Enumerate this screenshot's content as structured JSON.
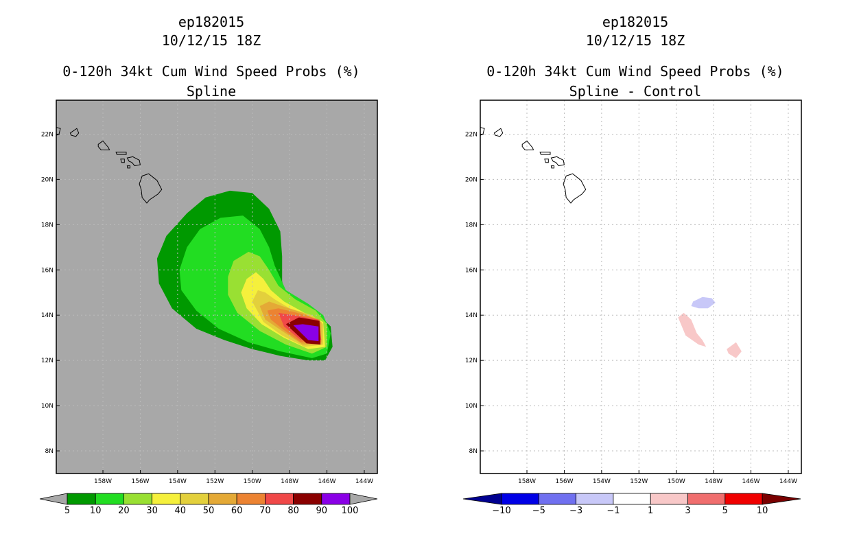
{
  "chart_data": [
    {
      "type": "contour-map",
      "title_lines": [
        "ep182015",
        "10/12/15 18Z",
        "0-120h 34kt Cum Wind Speed Probs (%)",
        "Spline"
      ],
      "xlabel": "",
      "ylabel": "",
      "lon_range": [
        -160.5,
        -143.3
      ],
      "lat_range": [
        7.0,
        23.5
      ],
      "x_ticks": [
        "158W",
        "156W",
        "154W",
        "152W",
        "150W",
        "148W",
        "146W",
        "144W"
      ],
      "x_tick_values": [
        -158,
        -156,
        -154,
        -152,
        -150,
        -148,
        -146,
        -144
      ],
      "y_ticks": [
        "8N",
        "10N",
        "12N",
        "14N",
        "16N",
        "18N",
        "20N",
        "22N"
      ],
      "y_tick_values": [
        8,
        10,
        12,
        14,
        16,
        18,
        20,
        22
      ],
      "background": "#a8a8a8",
      "colorbar": {
        "labels": [
          "5",
          "10",
          "20",
          "30",
          "40",
          "50",
          "60",
          "70",
          "80",
          "90",
          "100"
        ],
        "colors": [
          "#009900",
          "#22dd22",
          "#99e033",
          "#f5f03c",
          "#e3d03c",
          "#e4a936",
          "#ec8332",
          "#f04848",
          "#8a0000",
          "#8a00e6"
        ],
        "end_color": "#a8a8a8"
      },
      "contours": [
        {
          "level": 5,
          "color": "#009900",
          "points": [
            [
              -155.1,
              16.5
            ],
            [
              -154.6,
              17.5
            ],
            [
              -153.5,
              18.5
            ],
            [
              -152.5,
              19.2
            ],
            [
              -151.2,
              19.5
            ],
            [
              -150.0,
              19.4
            ],
            [
              -149.1,
              18.7
            ],
            [
              -148.5,
              17.7
            ],
            [
              -148.4,
              16.6
            ],
            [
              -148.4,
              15.5
            ],
            [
              -148.1,
              14.6
            ],
            [
              -147.3,
              14.1
            ],
            [
              -146.4,
              14.0
            ],
            [
              -145.8,
              13.5
            ],
            [
              -145.7,
              12.6
            ],
            [
              -146.1,
              12.0
            ],
            [
              -147.0,
              12.0
            ],
            [
              -148.5,
              12.2
            ],
            [
              -150.0,
              12.5
            ],
            [
              -151.5,
              12.9
            ],
            [
              -153.0,
              13.4
            ],
            [
              -154.3,
              14.3
            ],
            [
              -155.0,
              15.4
            ]
          ]
        },
        {
          "level": 10,
          "color": "#22dd22",
          "points": [
            [
              -153.9,
              16.0
            ],
            [
              -153.5,
              17.0
            ],
            [
              -152.8,
              17.8
            ],
            [
              -151.7,
              18.3
            ],
            [
              -150.5,
              18.4
            ],
            [
              -149.6,
              17.8
            ],
            [
              -149.1,
              17.0
            ],
            [
              -148.8,
              16.2
            ],
            [
              -148.2,
              15.1
            ],
            [
              -147.0,
              14.5
            ],
            [
              -146.2,
              14.0
            ],
            [
              -145.8,
              13.2
            ],
            [
              -146.0,
              12.3
            ],
            [
              -146.8,
              12.1
            ],
            [
              -148.5,
              12.4
            ],
            [
              -150.2,
              12.8
            ],
            [
              -151.8,
              13.4
            ],
            [
              -153.0,
              14.2
            ],
            [
              -153.8,
              15.1
            ]
          ]
        },
        {
          "level": 20,
          "color": "#99e033",
          "points": [
            [
              -151.3,
              15.7
            ],
            [
              -151.0,
              16.4
            ],
            [
              -150.2,
              16.8
            ],
            [
              -149.6,
              16.6
            ],
            [
              -149.1,
              16.0
            ],
            [
              -148.6,
              15.3
            ],
            [
              -147.7,
              14.7
            ],
            [
              -146.6,
              14.2
            ],
            [
              -146.0,
              13.6
            ],
            [
              -146.0,
              12.6
            ],
            [
              -146.8,
              12.3
            ],
            [
              -148.2,
              12.7
            ],
            [
              -149.6,
              13.3
            ],
            [
              -150.8,
              14.1
            ],
            [
              -151.3,
              14.9
            ]
          ]
        },
        {
          "level": 30,
          "color": "#f5f03c",
          "points": [
            [
              -150.6,
              15.0
            ],
            [
              -150.3,
              15.6
            ],
            [
              -149.8,
              15.9
            ],
            [
              -149.4,
              15.6
            ],
            [
              -149.0,
              15.1
            ],
            [
              -148.3,
              14.6
            ],
            [
              -147.2,
              14.1
            ],
            [
              -146.2,
              13.7
            ],
            [
              -146.1,
              12.6
            ],
            [
              -147.0,
              12.5
            ],
            [
              -148.3,
              13.0
            ],
            [
              -149.5,
              13.6
            ],
            [
              -150.3,
              14.3
            ]
          ]
        },
        {
          "level": 40,
          "color": "#e3d03c",
          "points": [
            [
              -150.0,
              14.6
            ],
            [
              -149.7,
              15.1
            ],
            [
              -149.3,
              15.0
            ],
            [
              -148.8,
              14.7
            ],
            [
              -148.0,
              14.3
            ],
            [
              -146.8,
              14.0
            ],
            [
              -146.2,
              13.6
            ],
            [
              -146.2,
              12.7
            ],
            [
              -147.2,
              12.6
            ],
            [
              -148.4,
              13.1
            ],
            [
              -149.4,
              13.7
            ]
          ]
        },
        {
          "level": 50,
          "color": "#e4a936",
          "points": [
            [
              -149.6,
              14.4
            ],
            [
              -149.1,
              14.6
            ],
            [
              -148.4,
              14.4
            ],
            [
              -147.3,
              14.1
            ],
            [
              -146.3,
              13.7
            ],
            [
              -146.3,
              12.7
            ],
            [
              -147.3,
              12.7
            ],
            [
              -148.4,
              13.3
            ],
            [
              -149.3,
              13.8
            ]
          ]
        },
        {
          "level": 60,
          "color": "#ec8332",
          "points": [
            [
              -149.2,
              14.2
            ],
            [
              -148.6,
              14.3
            ],
            [
              -147.6,
              14.1
            ],
            [
              -146.4,
              13.8
            ],
            [
              -146.3,
              12.8
            ],
            [
              -147.4,
              12.8
            ],
            [
              -148.4,
              13.4
            ],
            [
              -149.0,
              13.8
            ]
          ]
        },
        {
          "level": 70,
          "color": "#f04848",
          "points": [
            [
              -148.6,
              14.1
            ],
            [
              -147.8,
              14.0
            ],
            [
              -146.5,
              13.8
            ],
            [
              -146.3,
              12.9
            ],
            [
              -147.4,
              12.9
            ],
            [
              -148.3,
              13.5
            ]
          ]
        },
        {
          "level": 80,
          "color": "#8a0000",
          "points": [
            [
              -148.2,
              13.6
            ],
            [
              -147.5,
              13.9
            ],
            [
              -146.4,
              13.75
            ],
            [
              -146.35,
              12.7
            ],
            [
              -147.1,
              12.75
            ]
          ]
        },
        {
          "level": 90,
          "color": "#8a00e6",
          "points": [
            [
              -147.8,
              13.55
            ],
            [
              -147.3,
              13.6
            ],
            [
              -146.45,
              13.5
            ],
            [
              -146.45,
              12.85
            ],
            [
              -147.0,
              12.9
            ]
          ]
        }
      ]
    },
    {
      "type": "contour-map",
      "title_lines": [
        "ep182015",
        "10/12/15 18Z",
        "0-120h 34kt Cum Wind Speed Probs (%)",
        "Spline - Control"
      ],
      "xlabel": "",
      "ylabel": "",
      "lon_range": [
        -160.5,
        -143.3
      ],
      "lat_range": [
        7.0,
        23.5
      ],
      "x_ticks": [
        "158W",
        "156W",
        "154W",
        "152W",
        "150W",
        "148W",
        "146W",
        "144W"
      ],
      "x_tick_values": [
        -158,
        -156,
        -154,
        -152,
        -150,
        -148,
        -146,
        -144
      ],
      "y_ticks": [
        "8N",
        "10N",
        "12N",
        "14N",
        "16N",
        "18N",
        "20N",
        "22N"
      ],
      "y_tick_values": [
        8,
        10,
        12,
        14,
        16,
        18,
        20,
        22
      ],
      "background": "#ffffff",
      "grid": true,
      "colorbar": {
        "labels": [
          "-10",
          "-5",
          "-3",
          "-1",
          "1",
          "3",
          "5",
          "10"
        ],
        "colors": [
          "#0000e6",
          "#7070f0",
          "#c8c8f8",
          "#ffffff",
          "#f8c8c8",
          "#f06e6e",
          "#f00000"
        ],
        "start_color": "#000090",
        "end_color": "#7a0000"
      },
      "contours": [
        {
          "level": -1,
          "color": "#c8c8f8",
          "points": [
            [
              -149.1,
              14.6
            ],
            [
              -148.6,
              14.8
            ],
            [
              -148.1,
              14.75
            ],
            [
              -147.9,
              14.55
            ],
            [
              -148.3,
              14.3
            ],
            [
              -148.8,
              14.3
            ],
            [
              -149.2,
              14.4
            ]
          ]
        },
        {
          "level": 1,
          "color": "#f8c8c8",
          "points": [
            [
              -149.9,
              13.9
            ],
            [
              -149.6,
              14.1
            ],
            [
              -149.2,
              13.8
            ],
            [
              -148.9,
              13.2
            ],
            [
              -148.6,
              12.9
            ],
            [
              -148.4,
              12.6
            ],
            [
              -148.8,
              12.7
            ],
            [
              -149.5,
              13.1
            ]
          ]
        },
        {
          "level": 1,
          "color": "#f8c8c8",
          "points": [
            [
              -147.3,
              12.5
            ],
            [
              -146.8,
              12.8
            ],
            [
              -146.5,
              12.4
            ],
            [
              -146.8,
              12.1
            ],
            [
              -147.2,
              12.3
            ]
          ]
        }
      ]
    }
  ],
  "coastline": {
    "big_island": [
      [
        -155.9,
        20.15
      ],
      [
        -155.55,
        20.25
      ],
      [
        -155.1,
        19.95
      ],
      [
        -154.85,
        19.55
      ],
      [
        -155.05,
        19.35
      ],
      [
        -155.5,
        19.1
      ],
      [
        -155.65,
        18.95
      ],
      [
        -155.9,
        19.2
      ],
      [
        -155.95,
        19.55
      ],
      [
        -156.05,
        19.8
      ]
    ],
    "maui": [
      [
        -156.7,
        20.95
      ],
      [
        -156.4,
        21.0
      ],
      [
        -156.05,
        20.85
      ],
      [
        -156.0,
        20.65
      ],
      [
        -156.3,
        20.6
      ],
      [
        -156.45,
        20.75
      ],
      [
        -156.6,
        20.8
      ]
    ],
    "molokai": [
      [
        -157.3,
        21.2
      ],
      [
        -156.75,
        21.2
      ],
      [
        -156.75,
        21.1
      ],
      [
        -157.25,
        21.1
      ]
    ],
    "lanai": [
      [
        -157.05,
        20.9
      ],
      [
        -156.85,
        20.9
      ],
      [
        -156.85,
        20.75
      ],
      [
        -157.0,
        20.75
      ]
    ],
    "kahoolawe": [
      [
        -156.7,
        20.6
      ],
      [
        -156.55,
        20.6
      ],
      [
        -156.55,
        20.5
      ],
      [
        -156.68,
        20.5
      ]
    ],
    "oahu": [
      [
        -158.25,
        21.55
      ],
      [
        -158.0,
        21.7
      ],
      [
        -157.7,
        21.4
      ],
      [
        -157.65,
        21.3
      ],
      [
        -158.1,
        21.3
      ],
      [
        -158.25,
        21.45
      ]
    ],
    "kauai": [
      [
        -159.75,
        22.05
      ],
      [
        -159.4,
        22.25
      ],
      [
        -159.3,
        22.05
      ],
      [
        -159.45,
        21.9
      ],
      [
        -159.7,
        21.95
      ]
    ]
  }
}
